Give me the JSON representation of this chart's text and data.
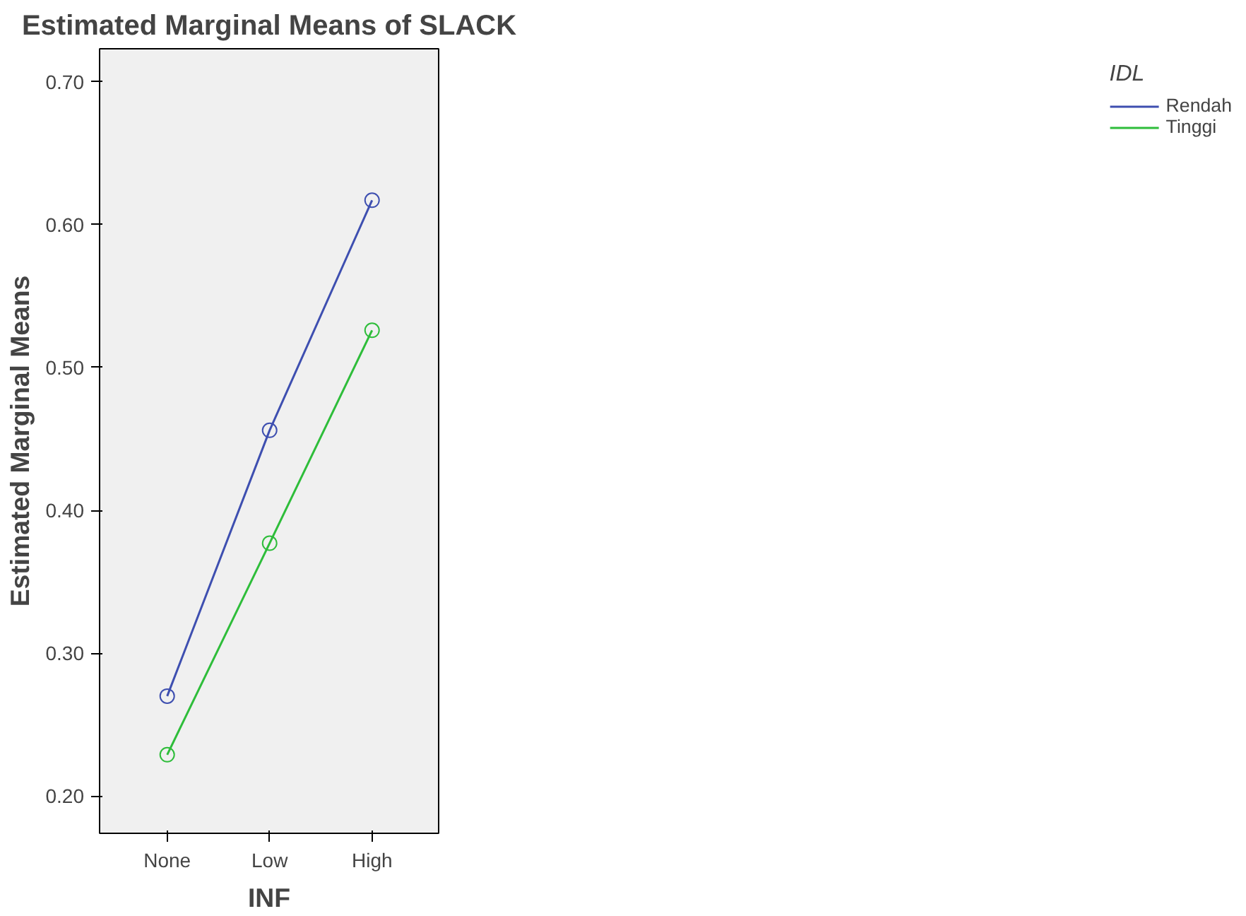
{
  "chart_data": {
    "type": "line",
    "title": "Estimated Marginal Means of SLACK",
    "xlabel": "INF",
    "ylabel": "Estimated Marginal Means",
    "legend_title": "IDL",
    "categories": [
      "None",
      "Low",
      "High"
    ],
    "series": [
      {
        "name": "Rendah",
        "color": "#3e4fb0",
        "values": [
          0.27,
          0.456,
          0.617
        ]
      },
      {
        "name": "Tinggi",
        "color": "#2ebd3a",
        "values": [
          0.229,
          0.377,
          0.526
        ]
      }
    ],
    "ylim": [
      0.174,
      0.723
    ],
    "yticks": [
      {
        "value": 0.2,
        "label": "0.20"
      },
      {
        "value": 0.3,
        "label": "0.30"
      },
      {
        "value": 0.4,
        "label": "0.40"
      },
      {
        "value": 0.5,
        "label": "0.50"
      },
      {
        "value": 0.6,
        "label": "0.60"
      },
      {
        "value": 0.7,
        "label": "0.70"
      }
    ],
    "grid": false,
    "legend": "right",
    "marker": "circle",
    "line_style": "solid"
  }
}
